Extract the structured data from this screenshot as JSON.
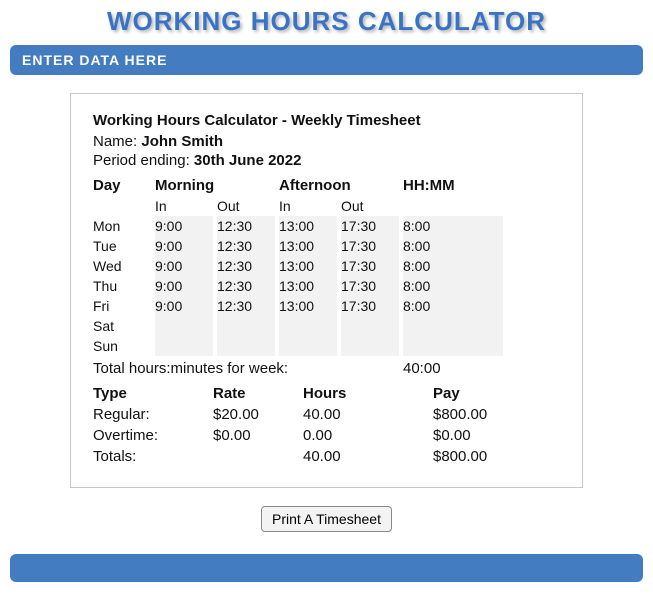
{
  "page_title": "WORKING HOURS CALCULATOR",
  "banner": "ENTER DATA HERE",
  "colors": {
    "banner_bg": "#447cc1",
    "banner_text": "#ffffff",
    "title_color": "#3973c5",
    "card_border": "#c8c8c8",
    "zebra_bg": "#f2f2f2",
    "page_bg": "#ffffff"
  },
  "timesheet": {
    "title": "Working Hours Calculator - Weekly Timesheet",
    "name_label": "Name: ",
    "name_value": "John Smith",
    "period_label": "Period ending: ",
    "period_value": "30th June 2022",
    "headers": {
      "day": "Day",
      "morning": "Morning",
      "afternoon": "Afternoon",
      "hhmm": "HH:MM",
      "in": "In",
      "out": "Out"
    },
    "rows": [
      {
        "day": "Mon",
        "m_in": "9:00",
        "m_out": "12:30",
        "a_in": "13:00",
        "a_out": "17:30",
        "hhmm": "8:00"
      },
      {
        "day": "Tue",
        "m_in": "9:00",
        "m_out": "12:30",
        "a_in": "13:00",
        "a_out": "17:30",
        "hhmm": "8:00"
      },
      {
        "day": "Wed",
        "m_in": "9:00",
        "m_out": "12:30",
        "a_in": "13:00",
        "a_out": "17:30",
        "hhmm": "8:00"
      },
      {
        "day": "Thu",
        "m_in": "9:00",
        "m_out": "12:30",
        "a_in": "13:00",
        "a_out": "17:30",
        "hhmm": "8:00"
      },
      {
        "day": "Fri",
        "m_in": "9:00",
        "m_out": "12:30",
        "a_in": "13:00",
        "a_out": "17:30",
        "hhmm": "8:00"
      },
      {
        "day": "Sat",
        "m_in": "",
        "m_out": "",
        "a_in": "",
        "a_out": "",
        "hhmm": ""
      },
      {
        "day": "Sun",
        "m_in": "",
        "m_out": "",
        "a_in": "",
        "a_out": "",
        "hhmm": ""
      }
    ],
    "total_label": "Total hours:minutes for week:",
    "total_value": "40:00",
    "pay": {
      "headers": {
        "type": "Type",
        "rate": "Rate",
        "hours": "Hours",
        "pay": "Pay"
      },
      "lines": [
        {
          "type": "Regular:",
          "rate": "$20.00",
          "hours": "40.00",
          "pay": "$800.00"
        },
        {
          "type": "Overtime:",
          "rate": "$0.00",
          "hours": "0.00",
          "pay": "$0.00"
        },
        {
          "type": "Totals:",
          "rate": "",
          "hours": "40.00",
          "pay": "$800.00"
        }
      ]
    }
  },
  "print_button": "Print A Timesheet"
}
